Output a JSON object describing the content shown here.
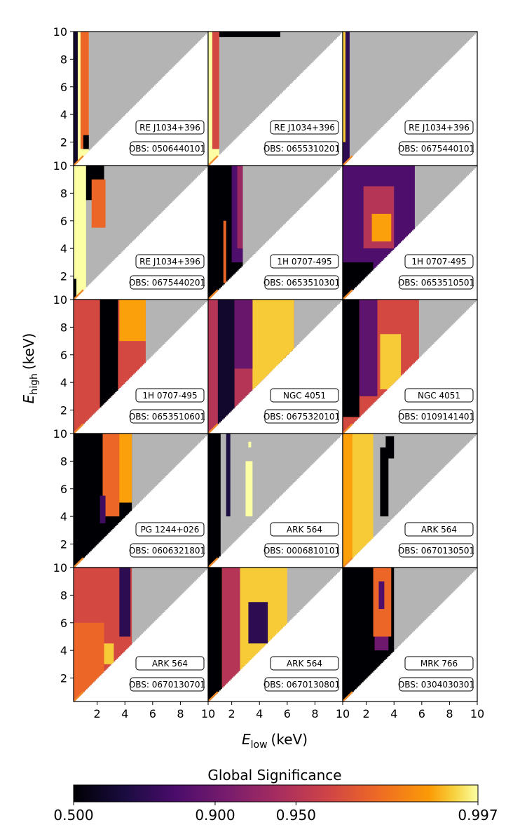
{
  "chart_data": {
    "type": "heatmap",
    "figure": {
      "ylabel_main": "E",
      "ylabel_sub": "high",
      "ylabel_unit": "(keV)",
      "xlabel_main": "E",
      "xlabel_sub": "low",
      "xlabel_unit": "(keV)",
      "x_range": [
        0.3,
        10
      ],
      "y_range": [
        0.3,
        10
      ],
      "y_ticks": [
        "2",
        "4",
        "6",
        "8",
        "10"
      ],
      "x_ticks": [
        "2",
        "4",
        "6",
        "8",
        "10"
      ],
      "colorbar": {
        "title": "Global Significance",
        "ticks": [
          "0.500",
          "0.900",
          "0.950",
          "0.997"
        ]
      },
      "colors": {
        "masked": "#b4b4b4",
        "diagonal": "#f08a2a",
        "axis": "#000000"
      }
    },
    "panels": [
      {
        "source": "RE J1034+396",
        "obs": "OBS: 0506440101",
        "band_max": 1.4,
        "band_sig": 0.997,
        "regions": [
          {
            "x0": 0.3,
            "x1": 0.6,
            "y0": 0.3,
            "y1": 10,
            "sig": 0.6
          },
          {
            "x0": 0.8,
            "x1": 1.4,
            "y0": 1.5,
            "y1": 10,
            "sig": 0.97
          },
          {
            "x0": 1.0,
            "x1": 1.4,
            "y0": 1.5,
            "y1": 2.5,
            "sig": 0.5
          }
        ]
      },
      {
        "source": "RE J1034+396",
        "obs": "OBS: 0655310201",
        "band_max": 1.1,
        "band_sig": 0.997,
        "regions": [
          {
            "x0": 1.1,
            "x1": 5.5,
            "y0": 9.6,
            "y1": 10,
            "sig": 0.5
          },
          {
            "x0": 0.6,
            "x1": 1.1,
            "y0": 1.5,
            "y1": 10,
            "sig": 0.96
          }
        ]
      },
      {
        "source": "RE J1034+396",
        "obs": "OBS: 0675440101",
        "band_max": 0.8,
        "band_sig": 0.7,
        "regions": [
          {
            "x0": 0.3,
            "x1": 0.5,
            "y0": 2.0,
            "y1": 10,
            "sig": 0.99
          }
        ]
      },
      {
        "source": "RE J1034+396",
        "obs": "OBS: 0675440201",
        "band_max": 1.2,
        "band_sig": 0.997,
        "regions": [
          {
            "x0": 0.3,
            "x1": 0.5,
            "y0": 0.3,
            "y1": 1.8,
            "sig": 0.5
          },
          {
            "x0": 1.2,
            "x1": 2.5,
            "y0": 7.5,
            "y1": 10,
            "sig": 0.5
          },
          {
            "x0": 1.6,
            "x1": 2.6,
            "y0": 5.5,
            "y1": 9.0,
            "sig": 0.97
          }
        ]
      },
      {
        "source": "1H 0707-495",
        "obs": "OBS: 0653510301",
        "band_max": 2.8,
        "band_sig": 0.5,
        "regions": [
          {
            "x0": 2.0,
            "x1": 2.8,
            "y0": 3.0,
            "y1": 10,
            "sig": 0.8
          },
          {
            "x0": 2.4,
            "x1": 2.8,
            "y0": 4.0,
            "y1": 10,
            "sig": 0.93
          },
          {
            "x0": 1.4,
            "x1": 1.6,
            "y0": 1.5,
            "y1": 6.0,
            "sig": 0.97
          }
        ]
      },
      {
        "source": "1H 0707-495",
        "obs": "OBS: 0653510501",
        "band_max": 5.5,
        "band_sig": 0.8,
        "regions": [
          {
            "x0": 1.8,
            "x1": 4.0,
            "y0": 4.0,
            "y1": 8.5,
            "sig": 0.95
          },
          {
            "x0": 2.4,
            "x1": 3.8,
            "y0": 4.5,
            "y1": 6.5,
            "sig": 0.985
          },
          {
            "x0": 0.3,
            "x1": 2.5,
            "y0": 0.3,
            "y1": 3.0,
            "sig": 0.5
          }
        ]
      },
      {
        "source": "1H 0707-495",
        "obs": "OBS: 0653510601",
        "band_max": 5.5,
        "band_sig": 0.96,
        "regions": [
          {
            "x0": 2.2,
            "x1": 3.5,
            "y0": 2.0,
            "y1": 10,
            "sig": 0.5
          },
          {
            "x0": 3.6,
            "x1": 5.5,
            "y0": 7.0,
            "y1": 10,
            "sig": 0.985
          }
        ]
      },
      {
        "source": "NGC 4051",
        "obs": "OBS: 0675320101",
        "band_max": 6.5,
        "band_sig": 0.95,
        "regions": [
          {
            "x0": 1.0,
            "x1": 2.2,
            "y0": 0.3,
            "y1": 10,
            "sig": 0.6
          },
          {
            "x0": 3.5,
            "x1": 6.5,
            "y0": 3.0,
            "y1": 10,
            "sig": 0.99
          },
          {
            "x0": 2.2,
            "x1": 3.5,
            "y0": 5.0,
            "y1": 10,
            "sig": 0.88
          }
        ]
      },
      {
        "source": "NGC 4051",
        "obs": "OBS: 0109141401",
        "band_max": 5.8,
        "band_sig": 0.96,
        "regions": [
          {
            "x0": 0.3,
            "x1": 1.5,
            "y0": 1.5,
            "y1": 10,
            "sig": 0.5
          },
          {
            "x0": 1.5,
            "x1": 2.8,
            "y0": 3.0,
            "y1": 10,
            "sig": 0.85
          },
          {
            "x0": 3.0,
            "x1": 4.5,
            "y0": 3.5,
            "y1": 7.5,
            "sig": 0.99
          }
        ]
      },
      {
        "source": "PG 1244+026",
        "obs": "OBS: 0606321801",
        "band_max": 4.5,
        "band_sig": 0.5,
        "regions": [
          {
            "x0": 2.4,
            "x1": 4.5,
            "y0": 5.0,
            "y1": 10,
            "sig": 0.985
          },
          {
            "x0": 2.4,
            "x1": 3.6,
            "y0": 4.0,
            "y1": 10,
            "sig": 0.97
          },
          {
            "x0": 2.2,
            "x1": 2.6,
            "y0": 3.5,
            "y1": 5.5,
            "sig": 0.75
          }
        ]
      },
      {
        "source": "ARK 564",
        "obs": "OBS: 0006810101",
        "band_max": 1.2,
        "band_sig": 0.5,
        "regions": [
          {
            "x0": 1.6,
            "x1": 1.9,
            "y0": 4.0,
            "y1": 10,
            "sig": 0.65
          },
          {
            "x0": 3.0,
            "x1": 3.5,
            "y0": 4.0,
            "y1": 8.0,
            "sig": 0.997
          },
          {
            "x0": 3.2,
            "x1": 3.4,
            "y0": 9.0,
            "y1": 9.4,
            "sig": 0.997
          }
        ]
      },
      {
        "source": "ARK 564",
        "obs": "OBS: 0670130501",
        "band_max": 2.5,
        "band_sig": 0.99,
        "regions": [
          {
            "x0": 3.0,
            "x1": 3.6,
            "y0": 4.0,
            "y1": 9.0,
            "sig": 0.5
          },
          {
            "x0": 3.4,
            "x1": 4.0,
            "y0": 8.2,
            "y1": 9.8,
            "sig": 0.5
          },
          {
            "x0": 0.3,
            "x1": 1.0,
            "y0": 0.3,
            "y1": 10,
            "sig": 0.985
          }
        ]
      },
      {
        "source": "ARK 564",
        "obs": "OBS: 0670130701",
        "band_max": 4.5,
        "band_sig": 0.96,
        "regions": [
          {
            "x0": 0.3,
            "x1": 2.5,
            "y0": 0.3,
            "y1": 6.0,
            "sig": 0.97
          },
          {
            "x0": 3.6,
            "x1": 4.4,
            "y0": 5.0,
            "y1": 10,
            "sig": 0.7
          },
          {
            "x0": 2.5,
            "x1": 3.2,
            "y0": 3.0,
            "y1": 4.5,
            "sig": 0.99
          }
        ]
      },
      {
        "source": "ARK 564",
        "obs": "OBS: 0670130801",
        "band_max": 6.0,
        "band_sig": 0.99,
        "regions": [
          {
            "x0": 0.3,
            "x1": 1.3,
            "y0": 0.3,
            "y1": 10,
            "sig": 0.5
          },
          {
            "x0": 1.3,
            "x1": 2.6,
            "y0": 0.3,
            "y1": 10,
            "sig": 0.95
          },
          {
            "x0": 3.2,
            "x1": 4.6,
            "y0": 4.5,
            "y1": 7.5,
            "sig": 0.7
          }
        ]
      },
      {
        "source": "MRK 766",
        "obs": "OBS: 0304030301",
        "band_max": 4.0,
        "band_sig": 0.5,
        "regions": [
          {
            "x0": 2.5,
            "x1": 3.8,
            "y0": 5.0,
            "y1": 10,
            "sig": 0.97
          },
          {
            "x0": 2.6,
            "x1": 3.6,
            "y0": 4.0,
            "y1": 5.0,
            "sig": 0.9
          },
          {
            "x0": 2.9,
            "x1": 3.3,
            "y0": 7.0,
            "y1": 9.0,
            "sig": 0.8
          }
        ]
      }
    ]
  }
}
